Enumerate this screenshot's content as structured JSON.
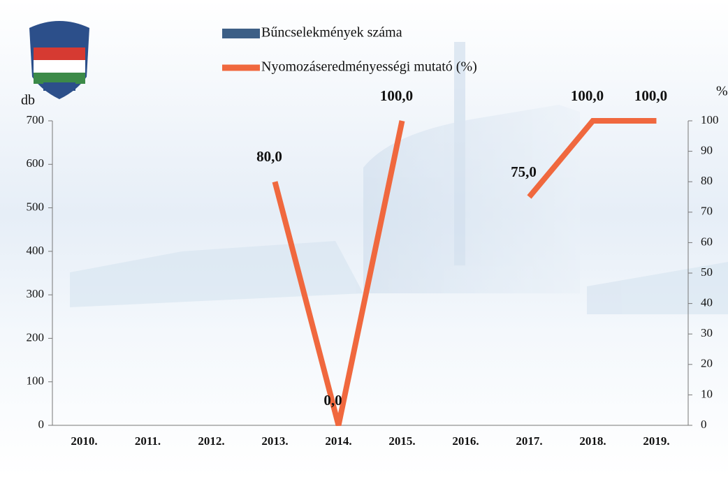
{
  "chart_data": {
    "type": "bar-line",
    "categories": [
      "2010.",
      "2011.",
      "2012.",
      "2013.",
      "2014.",
      "2015.",
      "2016.",
      "2017.",
      "2018.",
      "2019."
    ],
    "series": [
      {
        "name": "Bűncselekmények száma",
        "type": "bar",
        "color": "#3d5f86",
        "values": [
          null,
          null,
          null,
          null,
          null,
          null,
          null,
          null,
          null,
          null
        ]
      },
      {
        "name": "Nyomozáseredményességi mutató (%)",
        "type": "line",
        "axis": "y2",
        "color": "#f0683e",
        "values": [
          null,
          null,
          null,
          80,
          0,
          100,
          null,
          75,
          100,
          100
        ],
        "value_labels": [
          null,
          null,
          null,
          "80,0",
          "0,0",
          "100,0",
          null,
          "75,0",
          "100,0",
          "100,0"
        ]
      }
    ],
    "y_label": "db",
    "y2_label": "%",
    "ylim": [
      0,
      700
    ],
    "yticks": [
      0,
      100,
      200,
      300,
      400,
      500,
      600,
      700
    ],
    "y2lim": [
      0,
      100
    ],
    "y2ticks": [
      0,
      10,
      20,
      30,
      40,
      50,
      60,
      70,
      80,
      90,
      100
    ]
  }
}
